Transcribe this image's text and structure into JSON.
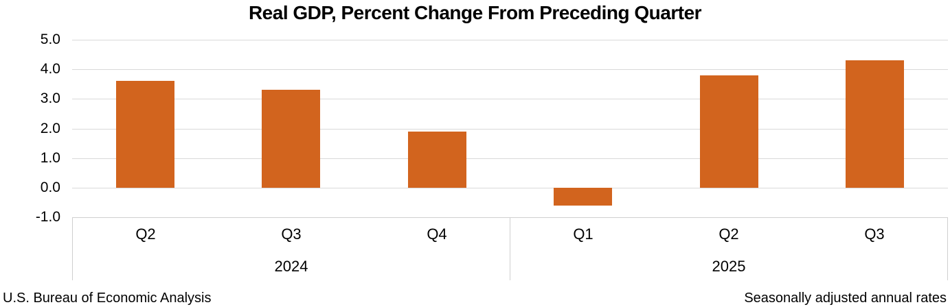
{
  "chart_data": {
    "type": "bar",
    "title": "Real GDP, Percent Change From Preceding Quarter",
    "categories": [
      "Q2",
      "Q3",
      "Q4",
      "Q1",
      "Q2",
      "Q3"
    ],
    "values": [
      3.6,
      3.3,
      1.9,
      -0.6,
      3.8,
      4.3
    ],
    "groups": [
      {
        "year": "2024",
        "quarters": [
          "Q2",
          "Q3",
          "Q4"
        ],
        "values": [
          3.6,
          3.3,
          1.9
        ]
      },
      {
        "year": "2025",
        "quarters": [
          "Q1",
          "Q2",
          "Q3"
        ],
        "values": [
          -0.6,
          3.8,
          4.3
        ]
      }
    ],
    "ylim": [
      -1.0,
      5.0
    ],
    "ytick_labels": [
      "5.0",
      "4.0",
      "3.0",
      "2.0",
      "1.0",
      "0.0",
      "-1.0"
    ],
    "ytick_values": [
      5,
      4,
      3,
      2,
      1,
      0,
      -1
    ],
    "grid": true,
    "legend": false,
    "bar_color": "#d2641e",
    "gridline_color": "#d9d9d9",
    "axis_border_color": "#cfcfcf",
    "text_color": "#000000"
  },
  "footer": {
    "left": "U.S. Bureau of Economic Analysis",
    "right": "Seasonally adjusted annual rates"
  }
}
